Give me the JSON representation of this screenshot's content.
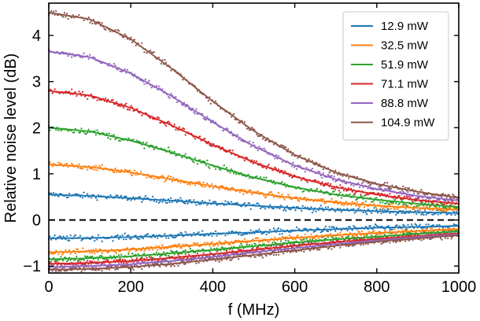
{
  "chart_data": {
    "type": "scatter",
    "title": "",
    "xlabel": "f (MHz)",
    "ylabel": "Relative noise level (dB)",
    "xlim": [
      0,
      1000
    ],
    "ylim": [
      -1.15,
      4.7
    ],
    "xticks": [
      0,
      200,
      400,
      600,
      800,
      1000
    ],
    "yticks": [
      -1,
      0,
      1,
      2,
      3,
      4
    ],
    "legend_position": "top-right",
    "grid": false,
    "reference_line": {
      "y": 0,
      "style": "dashed",
      "color": "#000000"
    },
    "series": [
      {
        "name": "12.9 mW",
        "color": "#1f77b4",
        "fit_x": [
          0,
          100,
          200,
          300,
          400,
          500,
          600,
          700,
          800,
          900,
          1000
        ],
        "upper_fit": [
          0.55,
          0.52,
          0.47,
          0.42,
          0.36,
          0.31,
          0.26,
          0.22,
          0.19,
          0.17,
          0.15
        ],
        "lower_fit": [
          -0.4,
          -0.39,
          -0.37,
          -0.34,
          -0.3,
          -0.27,
          -0.23,
          -0.2,
          -0.17,
          -0.15,
          -0.13
        ]
      },
      {
        "name": "32.5 mW",
        "color": "#ff7f0e",
        "fit_x": [
          0,
          100,
          200,
          300,
          400,
          500,
          600,
          700,
          800,
          900,
          1000
        ],
        "upper_fit": [
          1.2,
          1.15,
          1.03,
          0.88,
          0.73,
          0.59,
          0.47,
          0.38,
          0.31,
          0.26,
          0.22
        ],
        "lower_fit": [
          -0.7,
          -0.68,
          -0.64,
          -0.58,
          -0.52,
          -0.45,
          -0.39,
          -0.33,
          -0.28,
          -0.24,
          -0.2
        ]
      },
      {
        "name": "51.9 mW",
        "color": "#2ca02c",
        "fit_x": [
          0,
          100,
          200,
          300,
          400,
          500,
          600,
          700,
          800,
          900,
          1000
        ],
        "upper_fit": [
          2.0,
          1.92,
          1.72,
          1.46,
          1.18,
          0.92,
          0.71,
          0.55,
          0.44,
          0.35,
          0.28
        ],
        "lower_fit": [
          -0.85,
          -0.83,
          -0.79,
          -0.72,
          -0.65,
          -0.57,
          -0.49,
          -0.42,
          -0.36,
          -0.3,
          -0.25
        ]
      },
      {
        "name": "71.1 mW",
        "color": "#d62728",
        "fit_x": [
          0,
          100,
          200,
          300,
          400,
          500,
          600,
          700,
          800,
          900,
          1000
        ],
        "upper_fit": [
          2.8,
          2.7,
          2.43,
          2.05,
          1.63,
          1.25,
          0.94,
          0.71,
          0.55,
          0.43,
          0.35
        ],
        "lower_fit": [
          -0.95,
          -0.93,
          -0.89,
          -0.82,
          -0.74,
          -0.65,
          -0.56,
          -0.48,
          -0.41,
          -0.35,
          -0.29
        ]
      },
      {
        "name": "88.8 mW",
        "color": "#9467bd",
        "fit_x": [
          0,
          100,
          200,
          300,
          400,
          500,
          600,
          700,
          800,
          900,
          1000
        ],
        "upper_fit": [
          3.65,
          3.53,
          3.18,
          2.68,
          2.12,
          1.6,
          1.18,
          0.88,
          0.67,
          0.52,
          0.42
        ],
        "lower_fit": [
          -1.02,
          -1.0,
          -0.96,
          -0.89,
          -0.8,
          -0.7,
          -0.61,
          -0.52,
          -0.44,
          -0.37,
          -0.31
        ]
      },
      {
        "name": "104.9 mW",
        "color": "#8c564b",
        "fit_x": [
          0,
          100,
          200,
          300,
          400,
          500,
          600,
          700,
          800,
          900,
          1000
        ],
        "upper_fit": [
          4.5,
          4.35,
          3.92,
          3.28,
          2.57,
          1.93,
          1.41,
          1.03,
          0.78,
          0.61,
          0.48
        ],
        "lower_fit": [
          -1.08,
          -1.06,
          -1.02,
          -0.95,
          -0.86,
          -0.76,
          -0.66,
          -0.56,
          -0.47,
          -0.4,
          -0.33
        ]
      }
    ]
  }
}
